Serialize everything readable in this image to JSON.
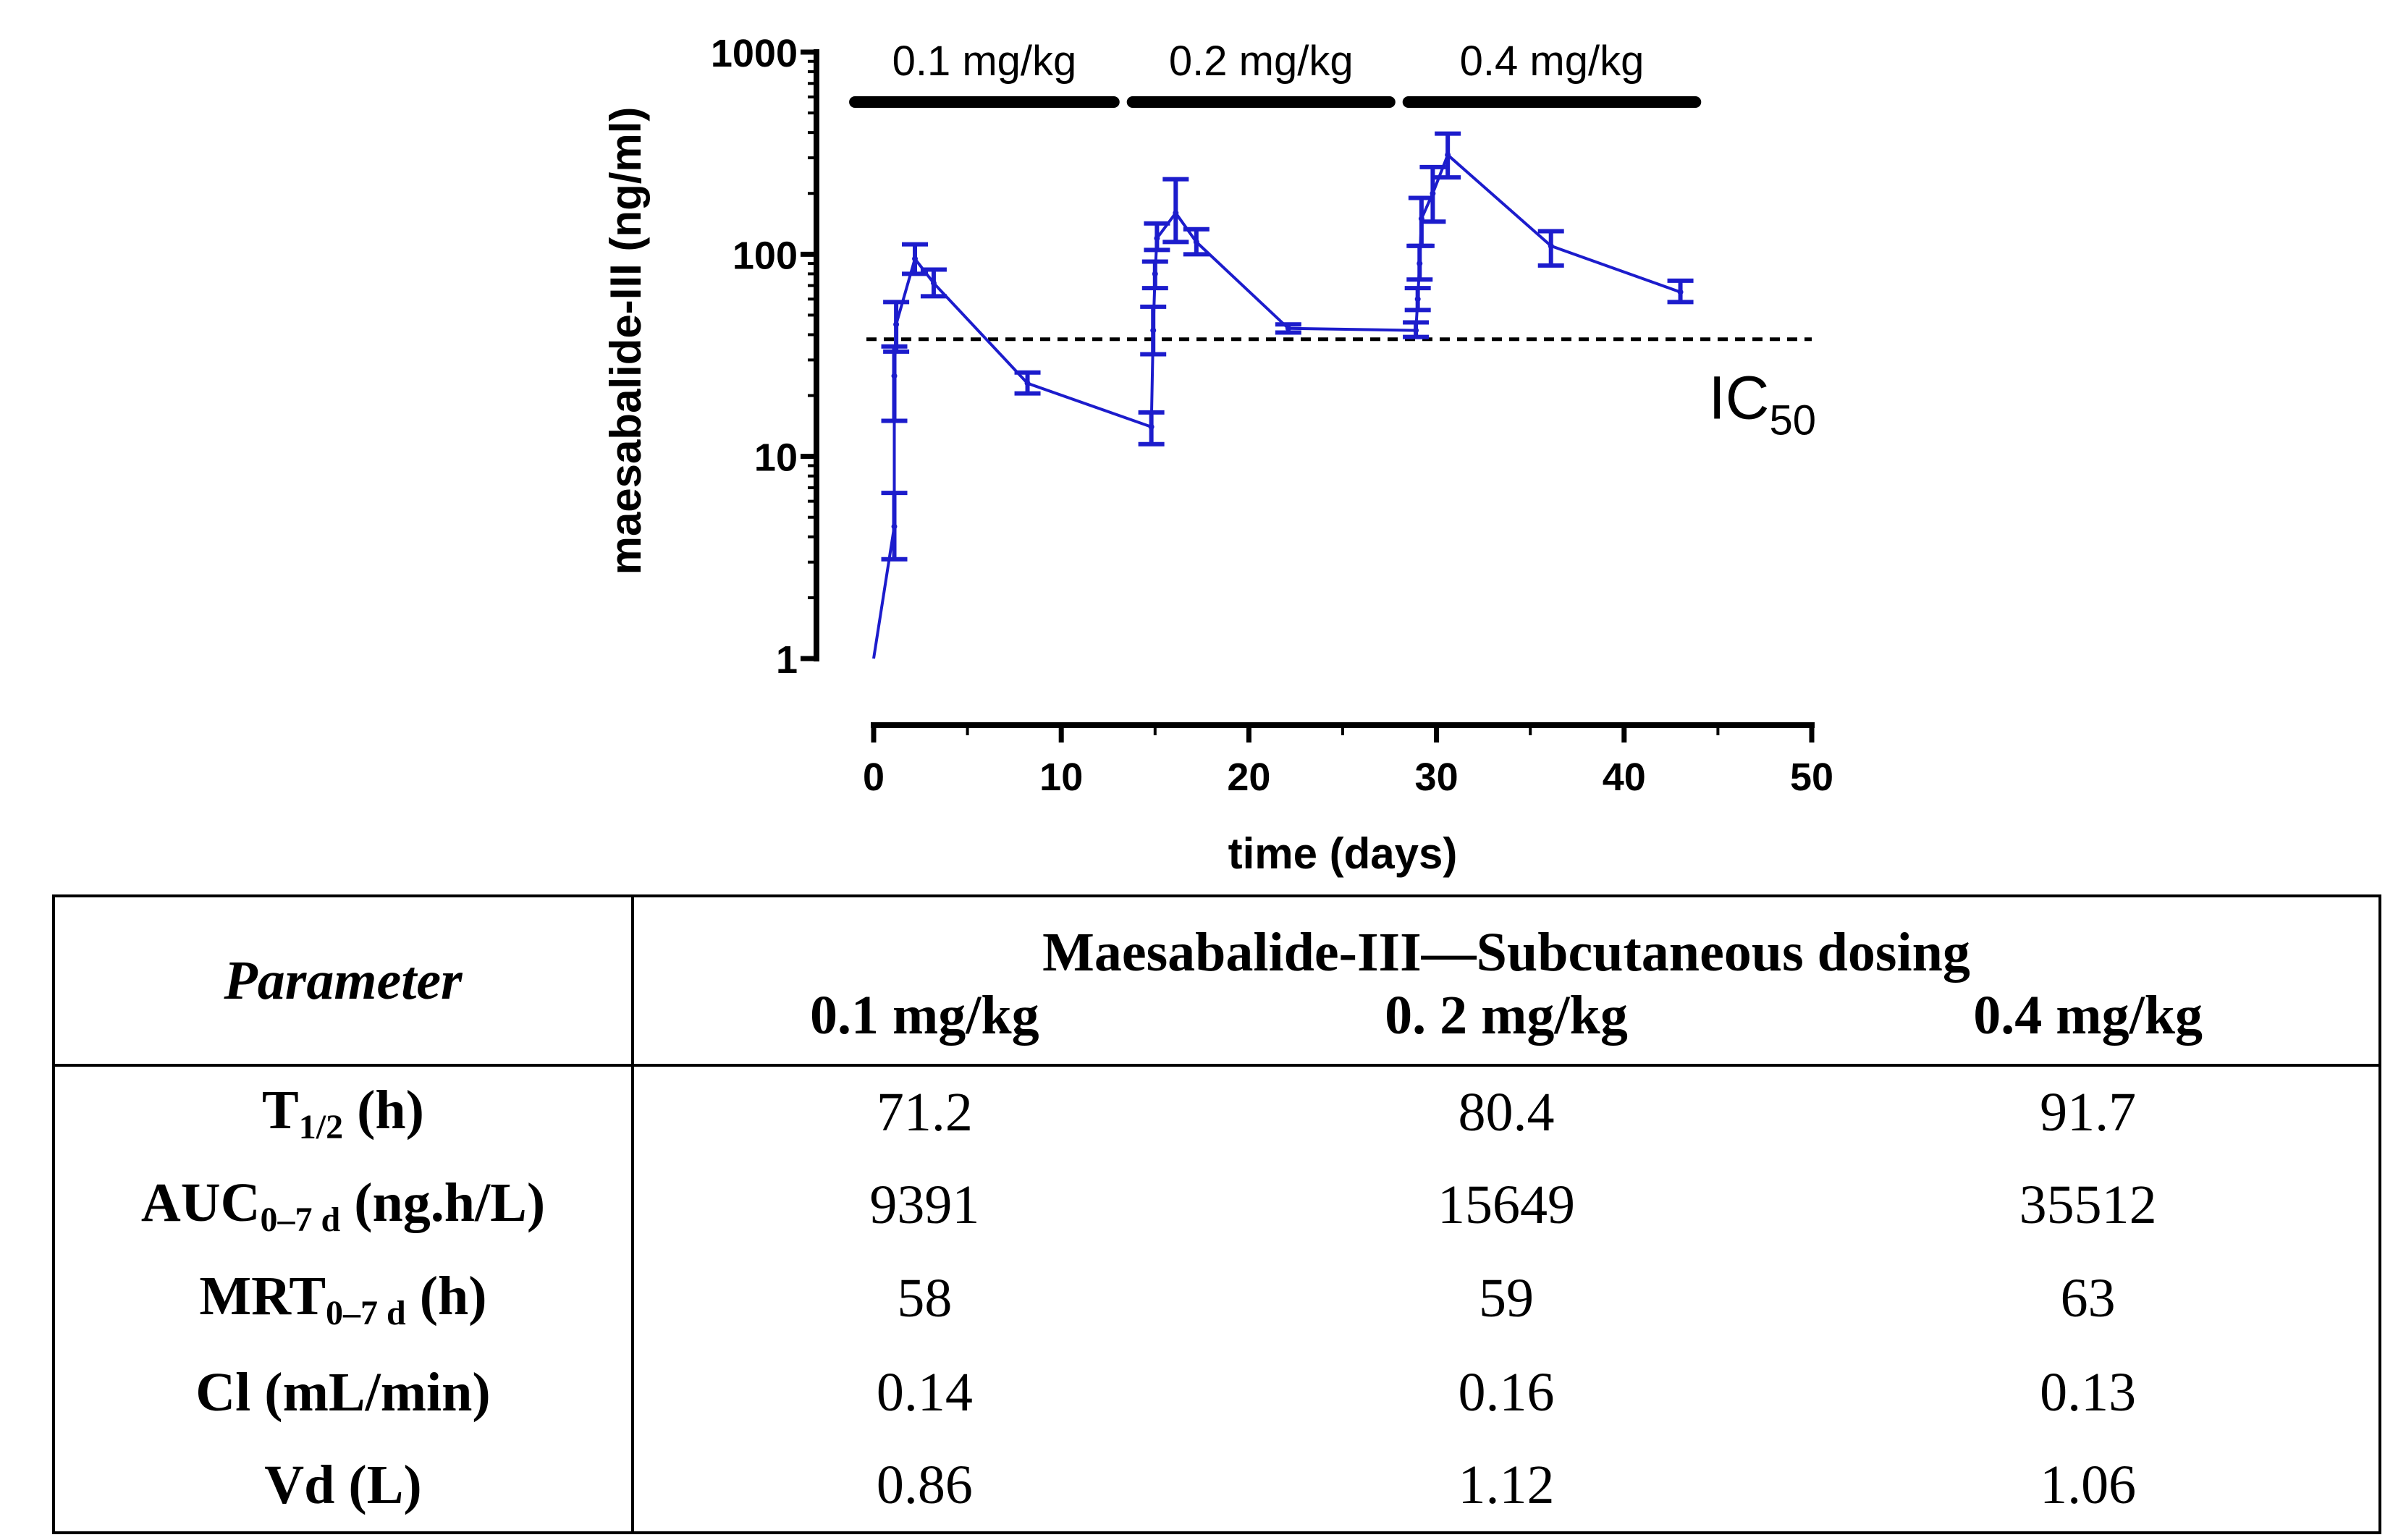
{
  "chart_data": {
    "type": "line",
    "xlabel": "time (days)",
    "ylabel": "maesabalide-III (ng/ml)",
    "xlim": [
      0,
      50
    ],
    "ylim": [
      1,
      1000
    ],
    "yscale": "log",
    "x_ticks": [
      0,
      10,
      20,
      30,
      40,
      50
    ],
    "x_tick_labels": [
      "0",
      "10",
      "20",
      "30",
      "40",
      "50"
    ],
    "y_ticks": [
      1,
      10,
      100,
      1000
    ],
    "y_tick_labels": [
      "1",
      "10",
      "100",
      "1000"
    ],
    "series": [
      {
        "name": "maesabalide-III",
        "color": "#1c1ccc",
        "points": [
          {
            "x": 0,
            "y": 1
          },
          {
            "x": 1.1,
            "y": 4.5,
            "lo": 3.1,
            "hi": 6.6
          },
          {
            "x": 1.1,
            "y": 25,
            "lo": 15,
            "hi": 35
          },
          {
            "x": 1.2,
            "y": 45,
            "lo": 33,
            "hi": 58
          },
          {
            "x": 2.2,
            "y": 95,
            "lo": 80,
            "hi": 112
          },
          {
            "x": 3.2,
            "y": 72,
            "lo": 62,
            "hi": 84
          },
          {
            "x": 8.2,
            "y": 23,
            "lo": 20.5,
            "hi": 26
          },
          {
            "x": 14.8,
            "y": 14,
            "lo": 11.5,
            "hi": 16.5
          },
          {
            "x": 14.9,
            "y": 42,
            "lo": 32,
            "hi": 55
          },
          {
            "x": 15.0,
            "y": 80,
            "lo": 68,
            "hi": 92
          },
          {
            "x": 15.1,
            "y": 120,
            "lo": 105,
            "hi": 142
          },
          {
            "x": 16.1,
            "y": 160,
            "lo": 115,
            "hi": 235
          },
          {
            "x": 17.2,
            "y": 115,
            "lo": 100,
            "hi": 133
          },
          {
            "x": 22.1,
            "y": 43,
            "lo": 41,
            "hi": 45
          },
          {
            "x": 28.9,
            "y": 42,
            "lo": 39,
            "hi": 46
          },
          {
            "x": 29.0,
            "y": 60,
            "lo": 53,
            "hi": 68
          },
          {
            "x": 29.1,
            "y": 90,
            "lo": 75,
            "hi": 110
          },
          {
            "x": 29.2,
            "y": 150,
            "lo": 110,
            "hi": 190
          },
          {
            "x": 29.8,
            "y": 200,
            "lo": 145,
            "hi": 270
          },
          {
            "x": 30.6,
            "y": 310,
            "lo": 240,
            "hi": 395
          },
          {
            "x": 36.1,
            "y": 110,
            "lo": 88,
            "hi": 130
          },
          {
            "x": 43.0,
            "y": 65,
            "lo": 58,
            "hi": 74
          }
        ]
      }
    ],
    "threshold": {
      "y": 38,
      "label": "IC",
      "label_sub": "50",
      "style": "dashed",
      "x_range": [
        0,
        50
      ]
    },
    "dose_periods": [
      {
        "label": "0.1 mg/kg",
        "x_start": -1,
        "x_end": 12.8
      },
      {
        "label": "0.2 mg/kg",
        "x_start": 13.8,
        "x_end": 27.5
      },
      {
        "label": "0.4 mg/kg",
        "x_start": 28.5,
        "x_end": 43.8
      }
    ]
  },
  "table": {
    "param_header": "Parameter",
    "group_header": "Maesabalide-III—Subcutaneous dosing",
    "dose_headers": [
      "0.1 mg/kg",
      "0. 2 mg/kg",
      "0.4 mg/kg"
    ],
    "rows": [
      {
        "label": "T",
        "sub": "1/2",
        "suffix": " (h)",
        "values": [
          "71.2",
          "80.4",
          "91.7"
        ]
      },
      {
        "label": "AUC",
        "sub": "0–7 d",
        "suffix": " (ng.h/L)",
        "values": [
          "9391",
          "15649",
          "35512"
        ]
      },
      {
        "label": "MRT",
        "sub": "0–7 d",
        "suffix": " (h)",
        "values": [
          "58",
          "59",
          "63"
        ]
      },
      {
        "label": "Cl (mL/min)",
        "sub": "",
        "suffix": "",
        "values": [
          "0.14",
          "0.16",
          "0.13"
        ]
      },
      {
        "label": "Vd (L)",
        "sub": "",
        "suffix": "",
        "values": [
          "0.86",
          "1.12",
          "1.06"
        ]
      }
    ]
  }
}
